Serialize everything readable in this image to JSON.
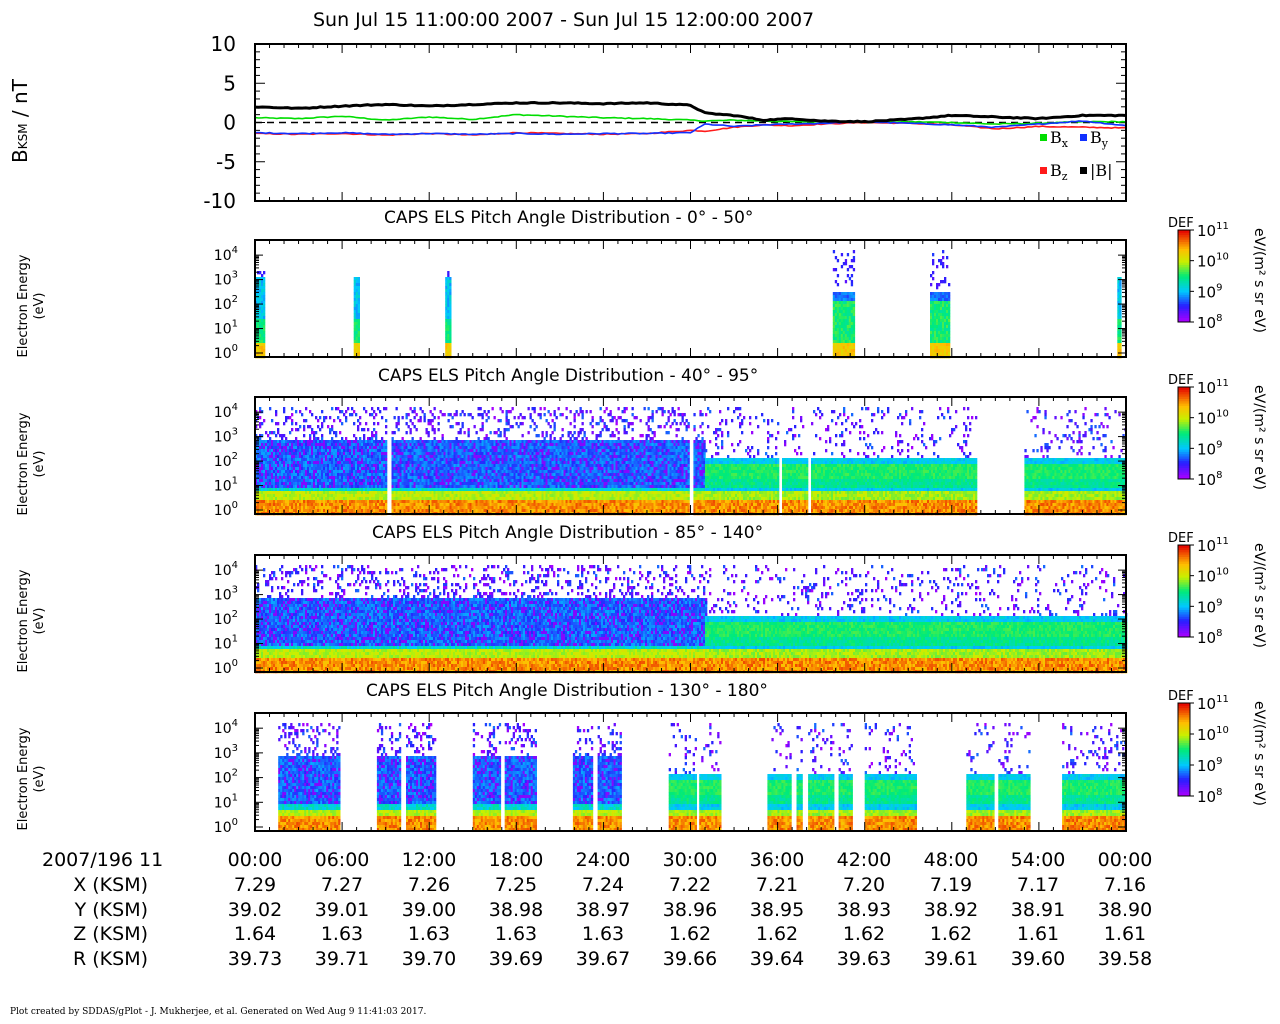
{
  "title": "Sun Jul 15 11:00:00 2007 - Sun Jul 15 12:00:00 2007",
  "footer": "Plot created by SDDAS/gPlot - J. Mukherjee, et al.  Generated on Wed Aug 9 11:41:03 2017.",
  "colors": {
    "bx": "#00dd00",
    "by": "#1030ff",
    "bz": "#ff1a1a",
    "bmag": "#000000"
  },
  "chart_data": [
    {
      "type": "line",
      "ylabel_main": "B",
      "ylabel_sub": "KSM",
      "ylabel_unit": " / nT",
      "ylim": [
        -10,
        10
      ],
      "yticks": [
        "10",
        "5",
        "0",
        "-5",
        "-10"
      ],
      "x_minutes": [
        0,
        3,
        6,
        9,
        12,
        15,
        18,
        21,
        24,
        27,
        30,
        31,
        33,
        35,
        37,
        39,
        42,
        45,
        48,
        51,
        54,
        57,
        60
      ],
      "series": [
        {
          "name": "Bx",
          "label_main": "B",
          "label_sub": "x",
          "color": "#00dd00",
          "values": [
            0.6,
            0.5,
            0.8,
            0.3,
            0.7,
            0.4,
            1.0,
            0.8,
            0.6,
            0.5,
            0.3,
            0.2,
            0.3,
            0.2,
            0.1,
            0.1,
            0.0,
            0.1,
            0.0,
            -0.2,
            -0.1,
            0.1,
            0.1
          ]
        },
        {
          "name": "By",
          "label_main": "B",
          "label_sub": "y",
          "color": "#1030ff",
          "values": [
            -1.3,
            -1.4,
            -1.3,
            -1.5,
            -1.4,
            -1.5,
            -1.4,
            -1.5,
            -1.4,
            -1.4,
            -1.3,
            -0.2,
            -0.5,
            -0.3,
            -0.2,
            -0.1,
            0.1,
            -0.1,
            -0.3,
            -0.6,
            -0.2,
            0.2,
            -0.4
          ]
        },
        {
          "name": "Bz",
          "label_main": "B",
          "label_sub": "z",
          "color": "#ff1a1a",
          "values": [
            -1.4,
            -1.5,
            -1.4,
            -1.6,
            -1.4,
            -1.6,
            -1.3,
            -1.4,
            -1.5,
            -1.4,
            -1.0,
            -1.1,
            -0.6,
            -0.3,
            -0.4,
            -0.2,
            0.0,
            -0.1,
            -0.3,
            -0.8,
            -0.5,
            -0.6,
            -0.7
          ]
        },
        {
          "name": "|B|",
          "label_main": "|B|",
          "label_sub": "",
          "color": "#000000",
          "values": [
            2.0,
            1.8,
            2.1,
            2.3,
            2.1,
            2.3,
            2.5,
            2.5,
            2.4,
            2.5,
            2.2,
            1.2,
            0.9,
            0.3,
            0.5,
            0.2,
            0.1,
            0.4,
            0.9,
            0.7,
            0.5,
            0.9,
            0.9
          ]
        }
      ]
    },
    {
      "type": "heatmap",
      "title": "CAPS ELS Pitch Angle Distribution - 0° - 50°",
      "ylabel": "Electron Energy",
      "yunit": "(eV)",
      "yaxis_scale": "log",
      "yticks": [
        {
          "b": "10",
          "e": "0"
        },
        {
          "b": "10",
          "e": "1"
        },
        {
          "b": "10",
          "e": "2"
        },
        {
          "b": "10",
          "e": "3"
        },
        {
          "b": "10",
          "e": "4"
        }
      ],
      "colorbar": {
        "label": "DEF",
        "unit": "eV/(m² s sr eV)",
        "ticks": [
          {
            "b": "10",
            "e": "8"
          },
          {
            "b": "10",
            "e": "9"
          },
          {
            "b": "10",
            "e": "10"
          },
          {
            "b": "10",
            "e": "11"
          }
        ]
      },
      "segments": [
        {
          "start": 0.0,
          "end": 0.6,
          "kind": "beam"
        },
        {
          "start": 6.8,
          "end": 7.1,
          "kind": "beam"
        },
        {
          "start": 13.1,
          "end": 13.5,
          "kind": "beam"
        },
        {
          "start": 39.8,
          "end": 41.2,
          "kind": "blob"
        },
        {
          "start": 46.5,
          "end": 47.8,
          "kind": "blob"
        },
        {
          "start": 59.4,
          "end": 59.6,
          "kind": "beam"
        }
      ]
    },
    {
      "type": "heatmap",
      "title": "CAPS ELS Pitch Angle Distribution - 40° - 95°",
      "ylabel": "Electron Energy",
      "yunit": "(eV)",
      "yaxis_scale": "log",
      "yticks": [
        {
          "b": "10",
          "e": "0"
        },
        {
          "b": "10",
          "e": "1"
        },
        {
          "b": "10",
          "e": "2"
        },
        {
          "b": "10",
          "e": "3"
        },
        {
          "b": "10",
          "e": "4"
        }
      ],
      "colorbar": {
        "label": "DEF",
        "unit": "eV/(m² s sr eV)",
        "ticks": [
          {
            "b": "10",
            "e": "8"
          },
          {
            "b": "10",
            "e": "9"
          },
          {
            "b": "10",
            "e": "10"
          },
          {
            "b": "10",
            "e": "11"
          }
        ]
      },
      "segments": [
        {
          "start": 0.0,
          "end": 9.0,
          "kind": "hot"
        },
        {
          "start": 9.4,
          "end": 29.8,
          "kind": "hot"
        },
        {
          "start": 30.2,
          "end": 31.0,
          "kind": "hot"
        },
        {
          "start": 31.0,
          "end": 36.0,
          "kind": "cool"
        },
        {
          "start": 36.3,
          "end": 38.0,
          "kind": "cool"
        },
        {
          "start": 38.3,
          "end": 49.6,
          "kind": "cool"
        },
        {
          "start": 53.0,
          "end": 60.0,
          "kind": "cool"
        }
      ]
    },
    {
      "type": "heatmap",
      "title": "CAPS ELS Pitch Angle Distribution - 85° - 140°",
      "ylabel": "Electron Energy",
      "yunit": "(eV)",
      "yaxis_scale": "log",
      "yticks": [
        {
          "b": "10",
          "e": "0"
        },
        {
          "b": "10",
          "e": "1"
        },
        {
          "b": "10",
          "e": "2"
        },
        {
          "b": "10",
          "e": "3"
        },
        {
          "b": "10",
          "e": "4"
        }
      ],
      "colorbar": {
        "label": "DEF",
        "unit": "eV/(m² s sr eV)",
        "ticks": [
          {
            "b": "10",
            "e": "8"
          },
          {
            "b": "10",
            "e": "9"
          },
          {
            "b": "10",
            "e": "10"
          },
          {
            "b": "10",
            "e": "11"
          }
        ]
      },
      "segments": [
        {
          "start": 0.0,
          "end": 31.0,
          "kind": "hot"
        },
        {
          "start": 31.0,
          "end": 60.0,
          "kind": "cool"
        }
      ]
    },
    {
      "type": "heatmap",
      "title": "CAPS ELS Pitch Angle Distribution - 130° - 180°",
      "ylabel": "Electron Energy",
      "yunit": "(eV)",
      "yaxis_scale": "log",
      "yticks": [
        {
          "b": "10",
          "e": "0"
        },
        {
          "b": "10",
          "e": "1"
        },
        {
          "b": "10",
          "e": "2"
        },
        {
          "b": "10",
          "e": "3"
        },
        {
          "b": "10",
          "e": "4"
        }
      ],
      "colorbar": {
        "label": "DEF",
        "unit": "eV/(m² s sr eV)",
        "ticks": [
          {
            "b": "10",
            "e": "8"
          },
          {
            "b": "10",
            "e": "9"
          },
          {
            "b": "10",
            "e": "10"
          },
          {
            "b": "10",
            "e": "11"
          }
        ]
      },
      "segments": [
        {
          "start": 1.6,
          "end": 5.8,
          "kind": "hot"
        },
        {
          "start": 8.4,
          "end": 10.0,
          "kind": "hot"
        },
        {
          "start": 10.4,
          "end": 12.4,
          "kind": "hot"
        },
        {
          "start": 15.0,
          "end": 16.8,
          "kind": "hot"
        },
        {
          "start": 17.2,
          "end": 19.4,
          "kind": "hot"
        },
        {
          "start": 21.9,
          "end": 23.2,
          "kind": "hot"
        },
        {
          "start": 23.6,
          "end": 25.2,
          "kind": "hot"
        },
        {
          "start": 28.5,
          "end": 30.3,
          "kind": "cool"
        },
        {
          "start": 30.6,
          "end": 32.1,
          "kind": "cool"
        },
        {
          "start": 35.3,
          "end": 36.9,
          "kind": "cool"
        },
        {
          "start": 37.3,
          "end": 37.7,
          "kind": "cool"
        },
        {
          "start": 38.1,
          "end": 39.8,
          "kind": "cool"
        },
        {
          "start": 40.2,
          "end": 41.1,
          "kind": "cool"
        },
        {
          "start": 42.0,
          "end": 45.5,
          "kind": "cool"
        },
        {
          "start": 49.0,
          "end": 50.8,
          "kind": "cool"
        },
        {
          "start": 51.2,
          "end": 53.3,
          "kind": "cool"
        },
        {
          "start": 55.6,
          "end": 59.9,
          "kind": "cool"
        }
      ]
    }
  ],
  "ephemeris": {
    "time_label": "2007/196 11",
    "times": [
      "00:00",
      "06:00",
      "12:00",
      "18:00",
      "24:00",
      "30:00",
      "36:00",
      "42:00",
      "48:00",
      "54:00",
      "00:00"
    ],
    "rows": [
      {
        "label": "X (KSM)",
        "values": [
          "7.29",
          "7.27",
          "7.26",
          "7.25",
          "7.24",
          "7.22",
          "7.21",
          "7.20",
          "7.19",
          "7.17",
          "7.16"
        ]
      },
      {
        "label": "Y (KSM)",
        "values": [
          "39.02",
          "39.01",
          "39.00",
          "38.98",
          "38.97",
          "38.96",
          "38.95",
          "38.93",
          "38.92",
          "38.91",
          "38.90"
        ]
      },
      {
        "label": "Z (KSM)",
        "values": [
          "1.64",
          "1.63",
          "1.63",
          "1.63",
          "1.63",
          "1.62",
          "1.62",
          "1.62",
          "1.62",
          "1.61",
          "1.61"
        ]
      },
      {
        "label": "R (KSM)",
        "values": [
          "39.73",
          "39.71",
          "39.70",
          "39.69",
          "39.67",
          "39.66",
          "39.64",
          "39.63",
          "39.61",
          "39.60",
          "39.58"
        ]
      }
    ]
  }
}
